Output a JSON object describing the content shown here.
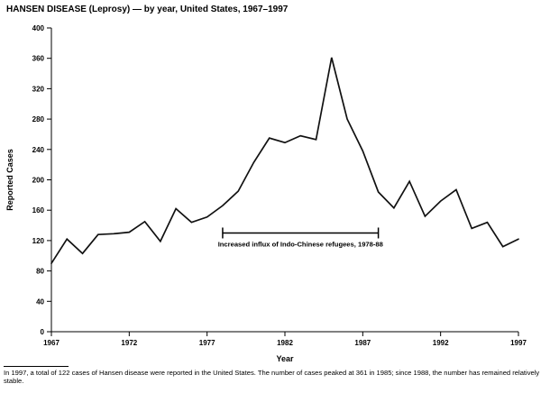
{
  "title": "HANSEN DISEASE (Leprosy) — by year, United States, 1967–1997",
  "chart_data": {
    "type": "line",
    "title": "HANSEN DISEASE (Leprosy) — by year, United States, 1967–1997",
    "xlabel": "Year",
    "ylabel": "Reported Cases",
    "ylim": [
      0,
      400
    ],
    "ytick_step": 40,
    "xticks": [
      1967,
      1972,
      1977,
      1982,
      1987,
      1992,
      1997
    ],
    "grid": false,
    "legend": "none",
    "line_color": "#111111",
    "x": [
      1967,
      1968,
      1969,
      1970,
      1971,
      1972,
      1973,
      1974,
      1975,
      1976,
      1977,
      1978,
      1979,
      1980,
      1981,
      1982,
      1983,
      1984,
      1985,
      1986,
      1987,
      1988,
      1989,
      1990,
      1991,
      1992,
      1993,
      1994,
      1995,
      1996,
      1997
    ],
    "values": [
      90,
      122,
      103,
      128,
      129,
      131,
      145,
      119,
      162,
      144,
      151,
      166,
      185,
      223,
      255,
      249,
      258,
      253,
      361,
      280,
      238,
      184,
      163,
      198,
      152,
      172,
      187,
      136,
      144,
      112,
      122
    ],
    "annotation": {
      "label": "Increased influx of Indo-Chinese refugees, 1978-88",
      "x_start": 1978,
      "x_end": 1988,
      "y": 130
    }
  },
  "footnote": "In 1997, a total of 122 cases of Hansen disease were reported in the United States. The number of cases peaked at 361 in 1985; since 1988, the number has remained relatively stable."
}
